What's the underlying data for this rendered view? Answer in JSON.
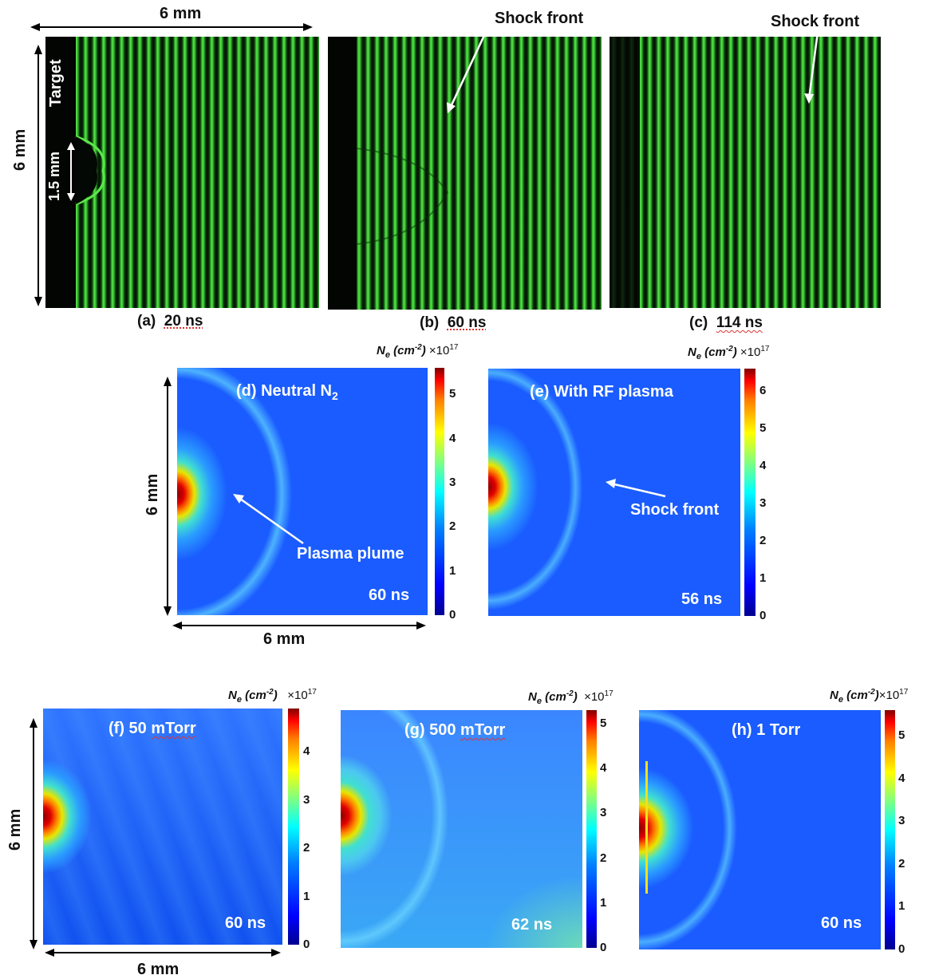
{
  "top_row": {
    "width_label": "6 mm",
    "height_label": "6 mm",
    "target_label": "Target",
    "spot_label": "1.5 mm",
    "annotation_b": "Shock front",
    "annotation_c": "Shock front",
    "panels": [
      {
        "id": "a",
        "letter": "(a)",
        "time": "20 ns"
      },
      {
        "id": "b",
        "letter": "(b)",
        "time": "60 ns"
      },
      {
        "id": "c",
        "letter": "(c)",
        "time": "114 ns"
      }
    ]
  },
  "middle_row": {
    "height_label": "6 mm",
    "width_label": "6 mm",
    "panels": [
      {
        "id": "d",
        "title": "(d)   Neutral N",
        "title_sub": "2",
        "time": "60 ns",
        "annotation": "Plasma plume",
        "colorbar_title": "N",
        "colorbar_title_sub": "e",
        "colorbar_unit": " (cm",
        "colorbar_unit_sup": "-2",
        "colorbar_unit_end": ")",
        "colorbar_scale": "×10",
        "colorbar_scale_sup": "17",
        "ticks": [
          "5",
          "4",
          "3",
          "2",
          "1",
          "0"
        ],
        "max": 5.6
      },
      {
        "id": "e",
        "title": "(e) With RF plasma",
        "time": "56 ns",
        "annotation": "Shock front",
        "colorbar_title": "N",
        "colorbar_title_sub": "e",
        "colorbar_unit": " (cm",
        "colorbar_unit_sup": "-2",
        "colorbar_unit_end": ")",
        "colorbar_scale": "×10",
        "colorbar_scale_sup": "17",
        "ticks": [
          "6",
          "5",
          "4",
          "3",
          "2",
          "1",
          "0"
        ],
        "max": 6.6
      }
    ]
  },
  "bottom_row": {
    "height_label": "6 mm",
    "width_label": "6 mm",
    "panels": [
      {
        "id": "f",
        "title_prefix": "(f) 50 ",
        "title_unit": "mTorr",
        "time": "60 ns",
        "colorbar_title": "N",
        "colorbar_title_sub": "e",
        "colorbar_unit": " (cm",
        "colorbar_unit_sup": "-2",
        "colorbar_unit_end": ")",
        "colorbar_scale": "×10",
        "colorbar_scale_sup": "17",
        "ticks": [
          "4",
          "3",
          "2",
          "1",
          "0"
        ],
        "max": 4.9
      },
      {
        "id": "g",
        "title_prefix": "(g) 500 ",
        "title_unit": "mTorr",
        "time": "62 ns",
        "colorbar_title": "N",
        "colorbar_title_sub": "e",
        "colorbar_unit": " (cm",
        "colorbar_unit_sup": "-2",
        "colorbar_unit_end": ")",
        "colorbar_scale": "×10",
        "colorbar_scale_sup": "17",
        "ticks": [
          "5",
          "4",
          "3",
          "2",
          "1",
          "0"
        ],
        "max": 5.3
      },
      {
        "id": "h",
        "title_prefix": "(h) 1 Torr",
        "title_unit": "",
        "time": "60 ns",
        "colorbar_title": "N",
        "colorbar_title_sub": "e",
        "colorbar_unit": " (cm",
        "colorbar_unit_sup": "-2",
        "colorbar_unit_end": ")",
        "colorbar_scale": "×10",
        "colorbar_scale_sup": "17",
        "ticks": [
          "5",
          "4",
          "3",
          "2",
          "1",
          "0"
        ],
        "max": 5.6
      }
    ]
  },
  "colors": {
    "fringe_green": "#3fd83a",
    "field_blue": "#1a5cff",
    "arrow_white": "#ffffff",
    "marker_yellow": "#f0e020"
  }
}
